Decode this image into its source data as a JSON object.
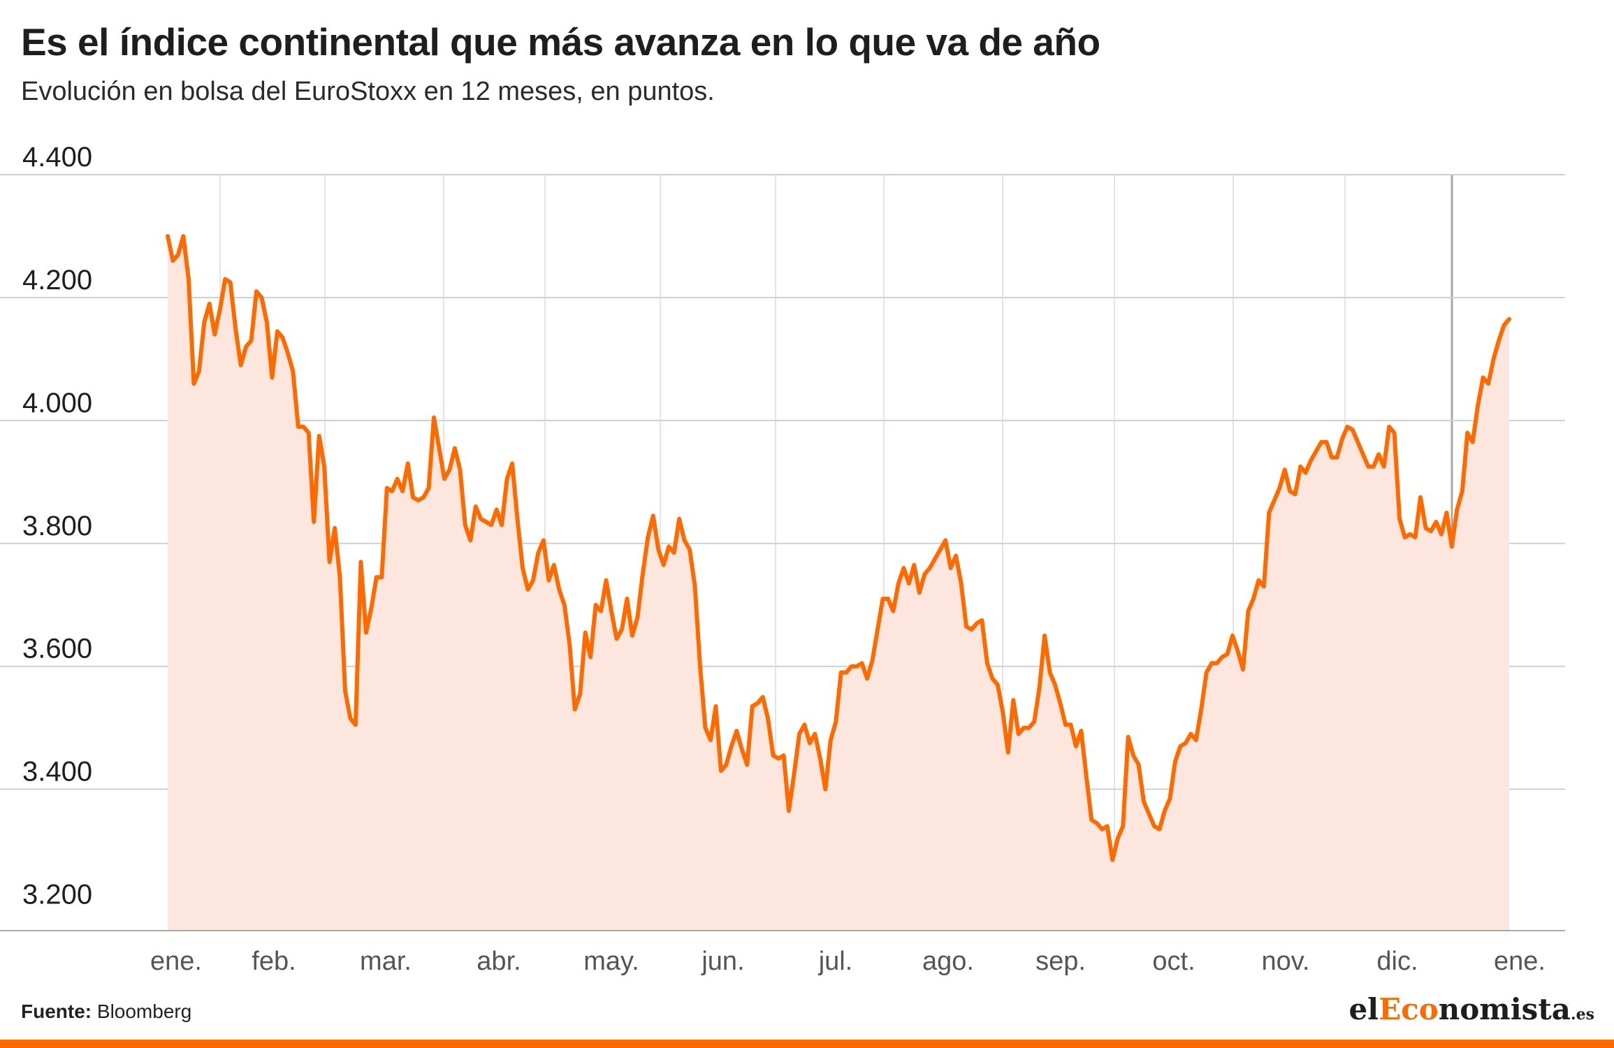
{
  "header": {
    "title": "Es el índice continental que más avanza en lo que va de año",
    "subtitle": "Evolución en bolsa del EuroStoxx en 12 meses, en puntos."
  },
  "footer": {
    "source_label": "Fuente:",
    "source_value": "Bloomberg",
    "logo_part1": "el",
    "logo_part2": "Eco",
    "logo_part3": "nomista",
    "logo_suffix": ".es"
  },
  "colors": {
    "line": "#ff6a00",
    "area": "#fde6de",
    "grid": "#cfcfcf",
    "accent": "#ff6a00"
  },
  "chart_data": {
    "type": "area",
    "title": "Es el índice continental que más avanza en lo que va de año",
    "subtitle": "Evolución en bolsa del EuroStoxx en 12 meses, en puntos.",
    "xlabel": "",
    "ylabel": "",
    "ylim": [
      3170,
      4400
    ],
    "yticks": [
      4400,
      4200,
      4000,
      3800,
      3600,
      3400,
      3200
    ],
    "ytick_labels": [
      "4.400",
      "4.200",
      "4.000",
      "3.800",
      "3.600",
      "3.400",
      "3.200"
    ],
    "month_labels": [
      "ene.",
      "feb.",
      "mar.",
      "abr.",
      "may.",
      "jun.",
      "jul.",
      "ago.",
      "sep.",
      "oct.",
      "nov.",
      "dic.",
      "ene."
    ],
    "grid": true,
    "legend": "none",
    "series": [
      {
        "values": [
          4300,
          4260,
          4270,
          4300,
          4230,
          4060,
          4080,
          4160,
          4190,
          4140,
          4180,
          4230,
          4225,
          4150,
          4090,
          4120,
          4130,
          4210,
          4200,
          4160,
          4070,
          4145,
          4135,
          4110,
          4080,
          3990,
          3990,
          3980,
          3835,
          3975,
          3925,
          3770,
          3825,
          3745,
          3560,
          3515,
          3505,
          3770,
          3655,
          3695,
          3745,
          3745,
          3890,
          3885,
          3905,
          3885,
          3930,
          3875,
          3870,
          3875,
          3890,
          4005,
          3955,
          3905,
          3920,
          3955,
          3920,
          3830,
          3805,
          3860,
          3840,
          3835,
          3830,
          3855,
          3830,
          3905,
          3930,
          3840,
          3760,
          3725,
          3740,
          3785,
          3805,
          3740,
          3765,
          3725,
          3700,
          3635,
          3530,
          3555,
          3655,
          3615,
          3700,
          3690,
          3740,
          3690,
          3645,
          3660,
          3710,
          3650,
          3680,
          3750,
          3810,
          3845,
          3790,
          3765,
          3795,
          3785,
          3840,
          3805,
          3790,
          3730,
          3600,
          3500,
          3480,
          3535,
          3430,
          3440,
          3470,
          3495,
          3465,
          3440,
          3535,
          3540,
          3550,
          3515,
          3455,
          3450,
          3455,
          3365,
          3425,
          3490,
          3505,
          3475,
          3490,
          3450,
          3400,
          3480,
          3510,
          3590,
          3590,
          3600,
          3600,
          3605,
          3580,
          3610,
          3660,
          3710,
          3710,
          3690,
          3735,
          3760,
          3735,
          3765,
          3720,
          3750,
          3760,
          3775,
          3790,
          3805,
          3760,
          3780,
          3735,
          3665,
          3660,
          3670,
          3675,
          3605,
          3580,
          3570,
          3525,
          3460,
          3545,
          3490,
          3500,
          3500,
          3510,
          3565,
          3650,
          3590,
          3570,
          3540,
          3505,
          3505,
          3470,
          3495,
          3420,
          3350,
          3345,
          3335,
          3340,
          3285,
          3320,
          3340,
          3485,
          3455,
          3440,
          3380,
          3360,
          3340,
          3335,
          3365,
          3385,
          3445,
          3470,
          3475,
          3490,
          3480,
          3530,
          3590,
          3605,
          3605,
          3615,
          3620,
          3650,
          3625,
          3595,
          3690,
          3710,
          3740,
          3730,
          3850,
          3870,
          3890,
          3920,
          3885,
          3880,
          3925,
          3915,
          3935,
          3950,
          3965,
          3965,
          3940,
          3940,
          3970,
          3990,
          3985,
          3965,
          3945,
          3925,
          3925,
          3945,
          3925,
          3990,
          3980,
          3840,
          3810,
          3815,
          3810,
          3875,
          3825,
          3820,
          3835,
          3815,
          3850,
          3795,
          3855,
          3885,
          3980,
          3965,
          4025,
          4070,
          4060,
          4100,
          4130,
          4155,
          4165
        ]
      }
    ]
  }
}
